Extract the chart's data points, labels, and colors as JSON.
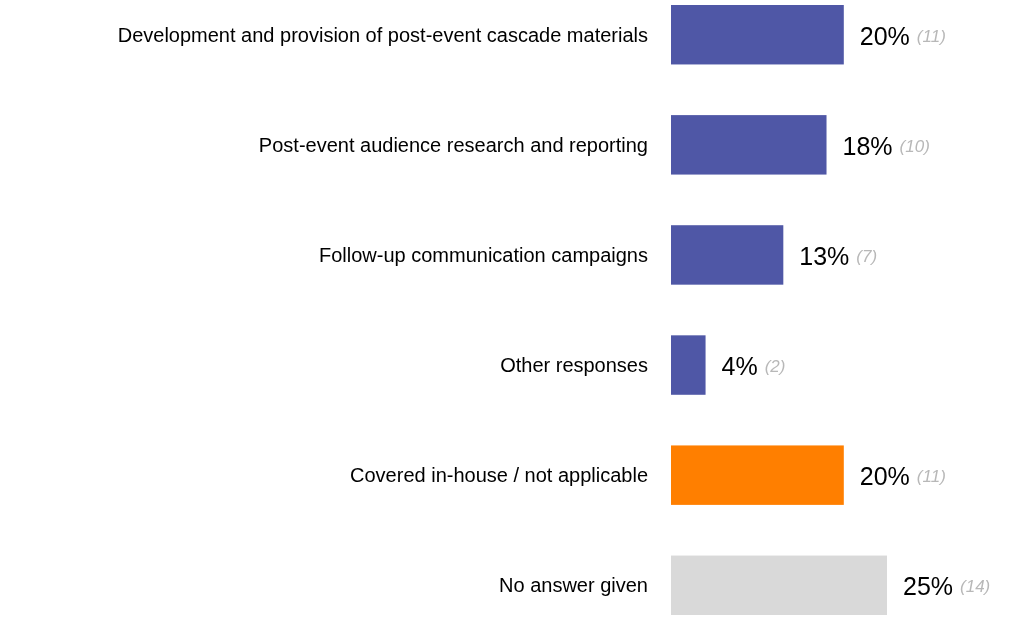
{
  "chart_data": {
    "type": "bar",
    "orientation": "horizontal",
    "categories": [
      "Development and provision of post-event cascade materials",
      "Post-event audience research and reporting",
      "Follow-up communication campaigns",
      "Other responses",
      "Covered in-house / not applicable",
      "No answer given"
    ],
    "values": [
      20,
      18,
      13,
      4,
      20,
      25
    ],
    "colors": [
      "#4f57a6",
      "#4f57a6",
      "#4f57a6",
      "#4f57a6",
      "#ff7f00",
      "#d9d9d9"
    ],
    "value_labels": [
      "20% (11)",
      "18% (10)",
      "13% (7)",
      "4% (2)",
      "20% (11)",
      "25% (14)"
    ]
  }
}
